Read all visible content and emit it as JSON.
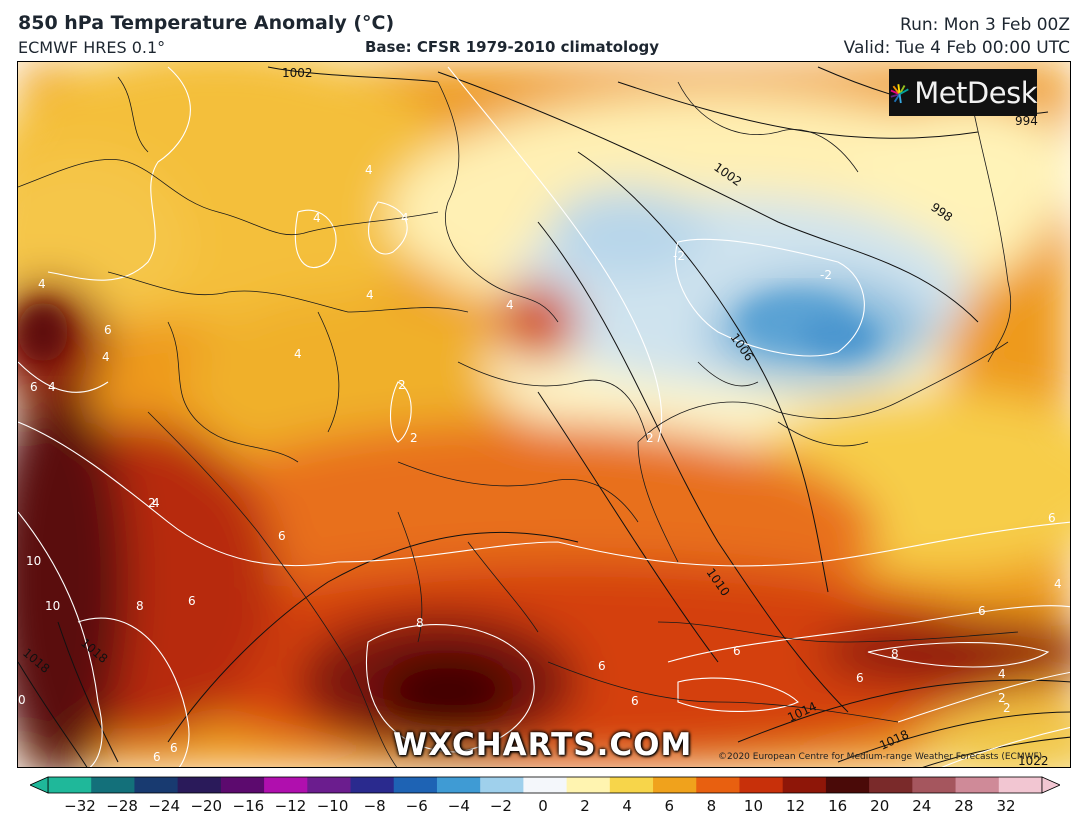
{
  "header": {
    "title": "850 hPa Temperature Anomaly (°C)",
    "model": "ECMWF HRES 0.1°",
    "base": "Base: CFSR 1979-2010 climatology",
    "run": "Run: Mon 3 Feb 00Z",
    "valid": "Valid: Tue 4 Feb 00:00 UTC"
  },
  "logo": {
    "text": "MetDesk"
  },
  "watermark": "WXCHARTS.COM",
  "copyright": "©2020 European Centre for Medium-range Weather Forecasts (ECMWF)",
  "isobar_labels": [
    "1002",
    "994",
    "1002",
    "998",
    "1006",
    "1010",
    "1018",
    "1018",
    "1014",
    "1018",
    "1022"
  ],
  "anomaly_labels": [
    "4",
    "4",
    "4",
    "4",
    "4",
    "4",
    "4",
    "2",
    "4",
    "4",
    "4",
    "6",
    "2",
    "2",
    "2",
    "-2",
    "-2",
    "2",
    "4",
    "6",
    "10",
    "10",
    "8",
    "6",
    "6",
    "8",
    "6",
    "6",
    "6",
    "6",
    "8",
    "6",
    "4",
    "2",
    "6",
    "6",
    "0",
    "6"
  ],
  "colorbar": {
    "ticks": [
      "−32",
      "−28",
      "−24",
      "−20",
      "−16",
      "−12",
      "−10",
      "−8",
      "−6",
      "−4",
      "−2",
      "0",
      "2",
      "4",
      "6",
      "8",
      "10",
      "12",
      "16",
      "20",
      "24",
      "28",
      "32"
    ],
    "colors": [
      "#1fb89a",
      "#13707a",
      "#183a70",
      "#2a1a5a",
      "#5c0a6e",
      "#b00fae",
      "#6b1d8e",
      "#2a2a8e",
      "#1e63b4",
      "#3f9bd4",
      "#9fd0ec",
      "#f4f7fb",
      "#fff4b0",
      "#f7d54a",
      "#f0a21c",
      "#e86010",
      "#c8300a",
      "#8e1608",
      "#4a0a08",
      "#7a2a2a",
      "#a5565e",
      "#cf8a98",
      "#f2c6d2"
    ]
  }
}
